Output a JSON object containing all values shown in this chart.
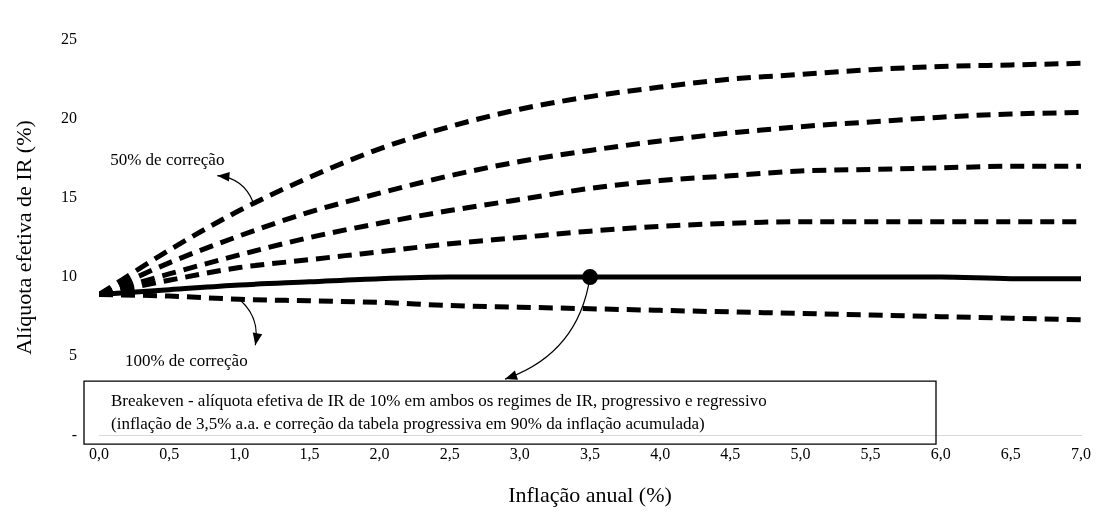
{
  "chart_data": {
    "type": "line",
    "xlabel": "Inflação anual (%)",
    "ylabel": "Alíquota efetiva de IR (%)",
    "x": [
      0,
      0.5,
      1,
      1.5,
      2,
      2.5,
      3,
      3.5,
      4,
      4.5,
      5,
      5.5,
      6,
      6.5,
      7
    ],
    "series": [
      {
        "color": "#000000",
        "line_style": "dashed",
        "values": [
          8.9,
          11.7,
          14.2,
          16.3,
          18.1,
          19.5,
          20.6,
          21.4,
          22.0,
          22.5,
          22.8,
          23.1,
          23.3,
          23.4,
          23.5
        ]
      },
      {
        "color": "#000000",
        "line_style": "dashed",
        "values": [
          8.9,
          10.9,
          12.6,
          14.1,
          15.3,
          16.4,
          17.3,
          18.0,
          18.6,
          19.1,
          19.5,
          19.8,
          20.1,
          20.3,
          20.4
        ]
      },
      {
        "color": "#000000",
        "line_style": "dashed",
        "values": [
          8.9,
          10.2,
          11.4,
          12.5,
          13.4,
          14.2,
          14.9,
          15.6,
          16.1,
          16.4,
          16.7,
          16.8,
          16.9,
          17.0,
          17.0
        ]
      },
      {
        "color": "#000000",
        "line_style": "dashed",
        "values": [
          8.9,
          9.8,
          10.6,
          11.1,
          11.6,
          12.1,
          12.5,
          12.9,
          13.2,
          13.4,
          13.5,
          13.5,
          13.5,
          13.5,
          13.5
        ]
      },
      {
        "color": "#000000",
        "line_style": "solid",
        "values": [
          8.9,
          9.2,
          9.5,
          9.7,
          9.9,
          10.0,
          10.0,
          10.0,
          10.0,
          10.0,
          10.0,
          10.0,
          10.0,
          9.9,
          9.9
        ]
      },
      {
        "color": "#000000",
        "line_style": "dashed",
        "values": [
          8.9,
          8.8,
          8.6,
          8.5,
          8.4,
          8.2,
          8.1,
          8.0,
          7.9,
          7.8,
          7.7,
          7.6,
          7.5,
          7.4,
          7.3
        ]
      },
      {
        "type": "scatter",
        "color": "#000000",
        "marker": "circle",
        "x": [
          3.5
        ],
        "values": [
          10.0
        ]
      }
    ],
    "xlim": [
      0,
      7
    ],
    "xticks": [
      {
        "value": 0,
        "label": "0,0"
      },
      {
        "value": 0.5,
        "label": "0,5"
      },
      {
        "value": 1,
        "label": "1,0"
      },
      {
        "value": 1.5,
        "label": "1,5"
      },
      {
        "value": 2,
        "label": "2,0"
      },
      {
        "value": 2.5,
        "label": "2,5"
      },
      {
        "value": 3,
        "label": "3,0"
      },
      {
        "value": 3.5,
        "label": "3,5"
      },
      {
        "value": 4,
        "label": "4,0"
      },
      {
        "value": 4.5,
        "label": "4,5"
      },
      {
        "value": 5,
        "label": "5,0"
      },
      {
        "value": 5.5,
        "label": "5,5"
      },
      {
        "value": 6,
        "label": "6,0"
      },
      {
        "value": 6.5,
        "label": "6,5"
      },
      {
        "value": 7,
        "label": "7,0"
      }
    ],
    "ylim": [
      0,
      25
    ],
    "yticks": [
      {
        "value": 0,
        "label": "-"
      },
      5,
      10,
      15,
      20,
      25
    ],
    "grid": false,
    "legend": false,
    "annotations": [
      {
        "text": "50% de correção",
        "x": 1.1,
        "y": 14.7
      },
      {
        "text": "100% de correção",
        "x": 1.0,
        "y": 8.6
      },
      {
        "text": "Breakeven - alíquota efetiva de IR de 10% em ambos os regimes de IR, progressivo e regressivo\n(inflação de 3,5% a.a. e correção da tabela progressiva em 90% da inflação acumulada)",
        "x": 3.5,
        "y": 10.0
      }
    ]
  }
}
